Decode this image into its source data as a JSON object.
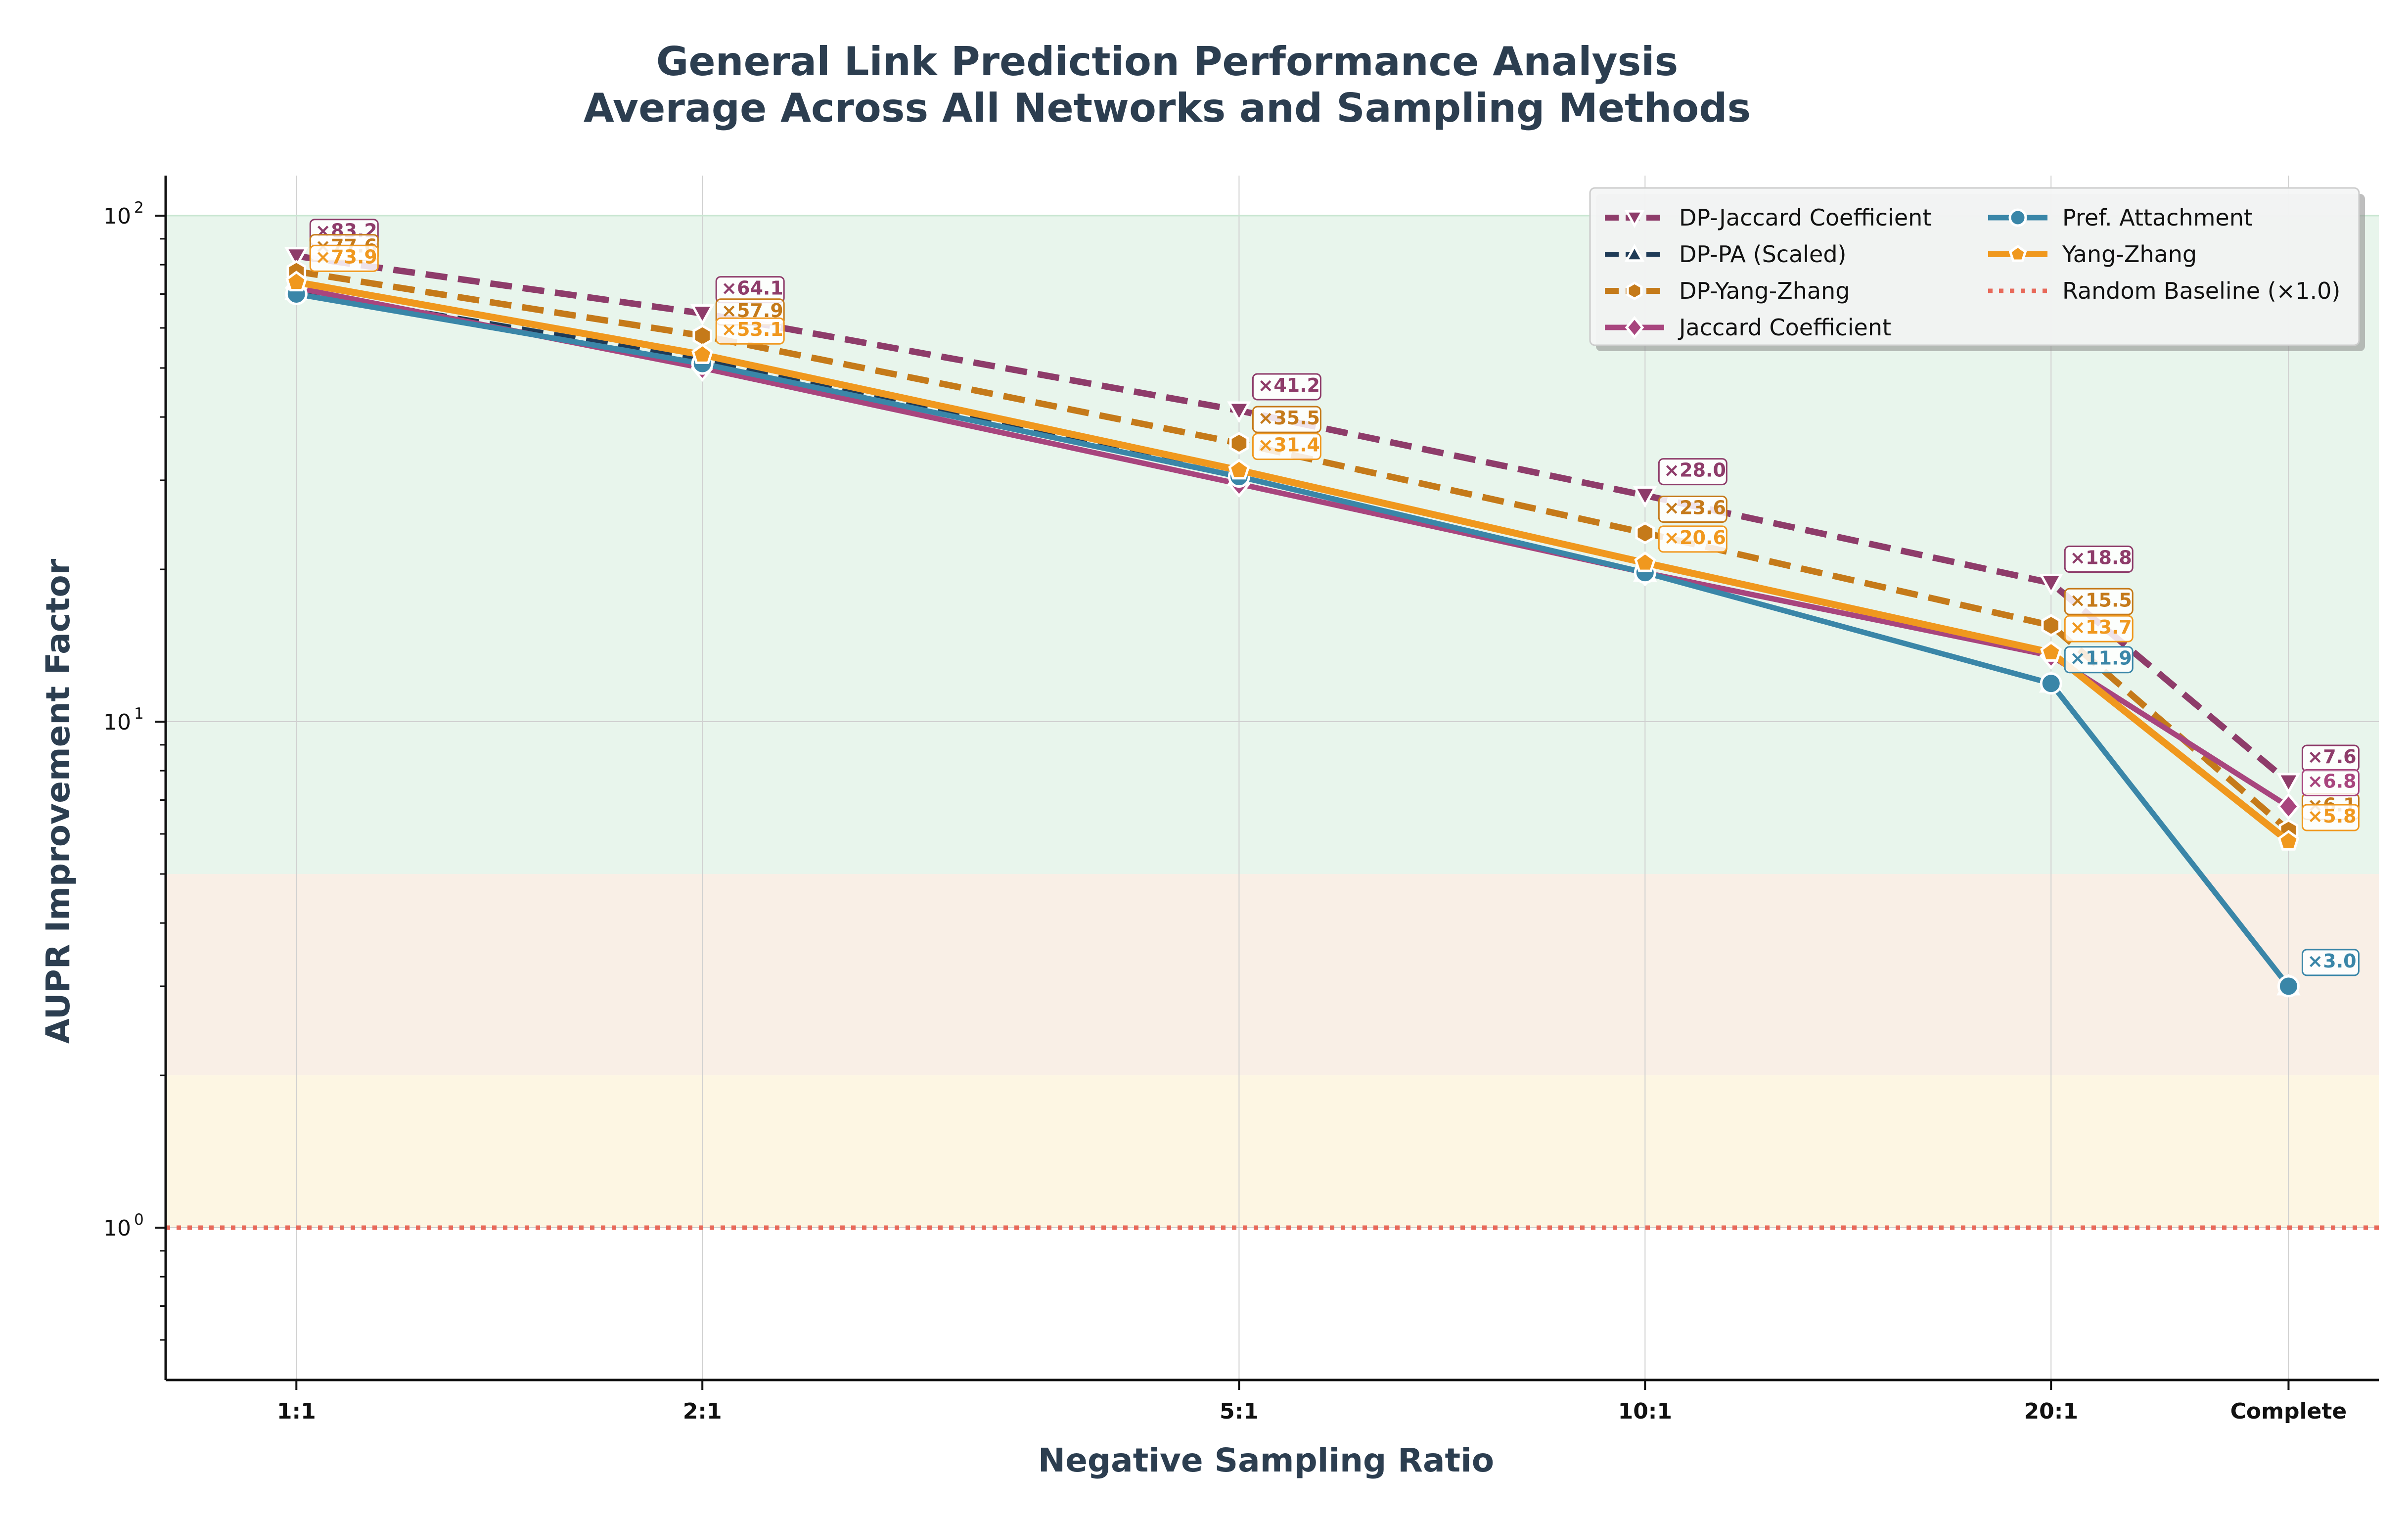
{
  "chart_data": {
    "type": "line",
    "title": "General Link Prediction Performance Analysis",
    "subtitle": "Average Across All Networks and Sampling Methods",
    "xlabel": "Negative Sampling Ratio",
    "ylabel": "AUPR Improvement Factor",
    "y_scale": "log",
    "ylim": [
      0.5,
      120
    ],
    "y_ticks": [
      {
        "base": "10",
        "exp": "0",
        "value": 1
      },
      {
        "base": "10",
        "exp": "1",
        "value": 10
      },
      {
        "base": "10",
        "exp": "2",
        "value": 100
      }
    ],
    "x_ticks": [
      {
        "label": "1:1",
        "value": 1
      },
      {
        "label": "2:1",
        "value": 2
      },
      {
        "label": "5:1",
        "value": 5
      },
      {
        "label": "10:1",
        "value": 10
      },
      {
        "label": "20:1",
        "value": 20
      },
      {
        "label": "Complete",
        "value": 30
      }
    ],
    "xlim": [
      0.8,
      35
    ],
    "grid": true,
    "legend_position": "top-right",
    "bands": [
      {
        "from": 5,
        "to": 100,
        "color": "#e8f5ec"
      },
      {
        "from": 2,
        "to": 5,
        "color": "#f9efe6"
      },
      {
        "from": 1,
        "to": 2,
        "color": "#fdf6e3"
      }
    ],
    "series": [
      {
        "name": "DP-Jaccard Coefficient",
        "color": "#8e3c6a",
        "dash": true,
        "marker": "triangle-down",
        "width": 13,
        "x": [
          1,
          2,
          5,
          10,
          20,
          30
        ],
        "values": [
          83.2,
          64.1,
          41.2,
          28.0,
          18.8,
          7.6
        ],
        "labels": [
          "×83.2",
          "×64.1",
          "×41.2",
          "×28.0",
          "×18.8",
          "×7.6"
        ]
      },
      {
        "name": "DP-PA (Scaled)",
        "color": "#1f3b57",
        "dash": true,
        "marker": "triangle-up",
        "width": 10,
        "x": [
          1,
          2,
          5,
          10,
          20,
          30
        ],
        "values": [
          71.0,
          52.0,
          30.5,
          19.7,
          11.9,
          3.0
        ],
        "labels": [
          "",
          "",
          "",
          "",
          "",
          ""
        ]
      },
      {
        "name": "DP-Yang-Zhang",
        "color": "#c57a1a",
        "dash": true,
        "marker": "hexagon",
        "width": 13,
        "x": [
          1,
          2,
          5,
          10,
          20,
          30
        ],
        "values": [
          77.6,
          57.9,
          35.5,
          23.6,
          15.5,
          6.1
        ],
        "labels": [
          "×77.6",
          "×57.9",
          "×35.5",
          "×23.6",
          "×15.5",
          "×6.1"
        ]
      },
      {
        "name": "Jaccard Coefficient",
        "color": "#a8457e",
        "dash": false,
        "marker": "diamond",
        "width": 11,
        "x": [
          1,
          2,
          5,
          10,
          20,
          30
        ],
        "values": [
          72.0,
          50.0,
          29.5,
          19.7,
          13.5,
          6.8
        ],
        "labels": [
          "",
          "",
          "",
          "",
          "",
          "×6.8"
        ]
      },
      {
        "name": "Pref. Attachment",
        "color": "#3a86a8",
        "dash": false,
        "marker": "circle",
        "width": 11,
        "x": [
          1,
          2,
          5,
          10,
          20,
          30
        ],
        "values": [
          70.0,
          51.0,
          30.5,
          19.7,
          11.9,
          3.0
        ],
        "labels": [
          "",
          "",
          "",
          "",
          "×11.9",
          "×3.0"
        ]
      },
      {
        "name": "Yang-Zhang",
        "color": "#f0981e",
        "dash": false,
        "marker": "pentagon",
        "width": 14,
        "x": [
          1,
          2,
          5,
          10,
          20,
          30
        ],
        "values": [
          73.9,
          53.1,
          31.4,
          20.6,
          13.7,
          5.8
        ],
        "labels": [
          "×73.9",
          "×53.1",
          "×31.4",
          "×20.6",
          "×13.7",
          "×5.8"
        ]
      }
    ],
    "baseline": {
      "name": "Random Baseline (×1.0)",
      "value": 1.0,
      "color": "#e8695a"
    }
  }
}
